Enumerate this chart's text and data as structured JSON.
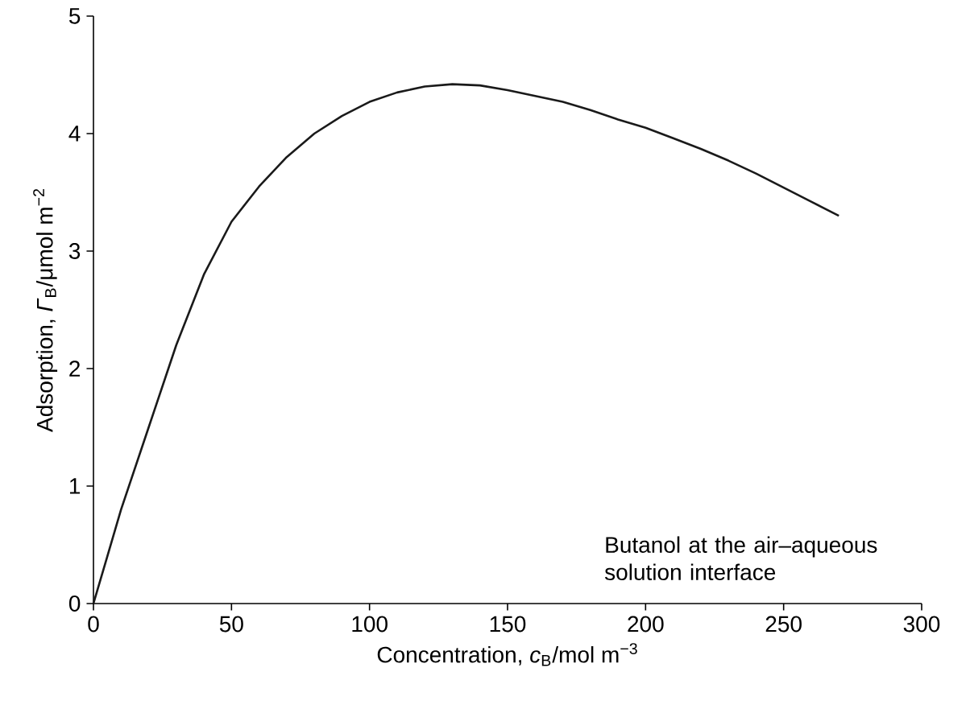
{
  "chart_data": {
    "type": "line",
    "xlabel": "Concentration, *c*$_{B}$/mol m$^{−3}$",
    "ylabel": "Adsorption, *Γ*$_{B}$/μmol m$^{−2}$",
    "x": [
      0,
      5,
      10,
      20,
      30,
      40,
      50,
      60,
      70,
      80,
      90,
      100,
      110,
      120,
      130,
      140,
      150,
      160,
      170,
      180,
      190,
      200,
      210,
      220,
      230,
      240,
      250,
      260,
      270
    ],
    "series": [
      {
        "color": "#1a1a1a",
        "values": [
          0,
          0.4,
          0.8,
          1.5,
          2.2,
          2.8,
          3.25,
          3.55,
          3.8,
          4.0,
          4.15,
          4.27,
          4.35,
          4.4,
          4.42,
          4.41,
          4.37,
          4.32,
          4.27,
          4.2,
          4.12,
          4.05,
          3.96,
          3.87,
          3.77,
          3.66,
          3.54,
          3.42,
          3.3
        ]
      }
    ],
    "xlim": [
      0,
      300
    ],
    "ylim": [
      0,
      5
    ],
    "xticks": [
      0,
      50,
      100,
      150,
      200,
      250,
      300
    ],
    "yticks": [
      0,
      1,
      2,
      3,
      4,
      5
    ],
    "grid": false,
    "legend": false,
    "marker": "none",
    "line_style": "solid",
    "annotations": [
      "Butanol at the air–aqueous solution interface"
    ]
  }
}
